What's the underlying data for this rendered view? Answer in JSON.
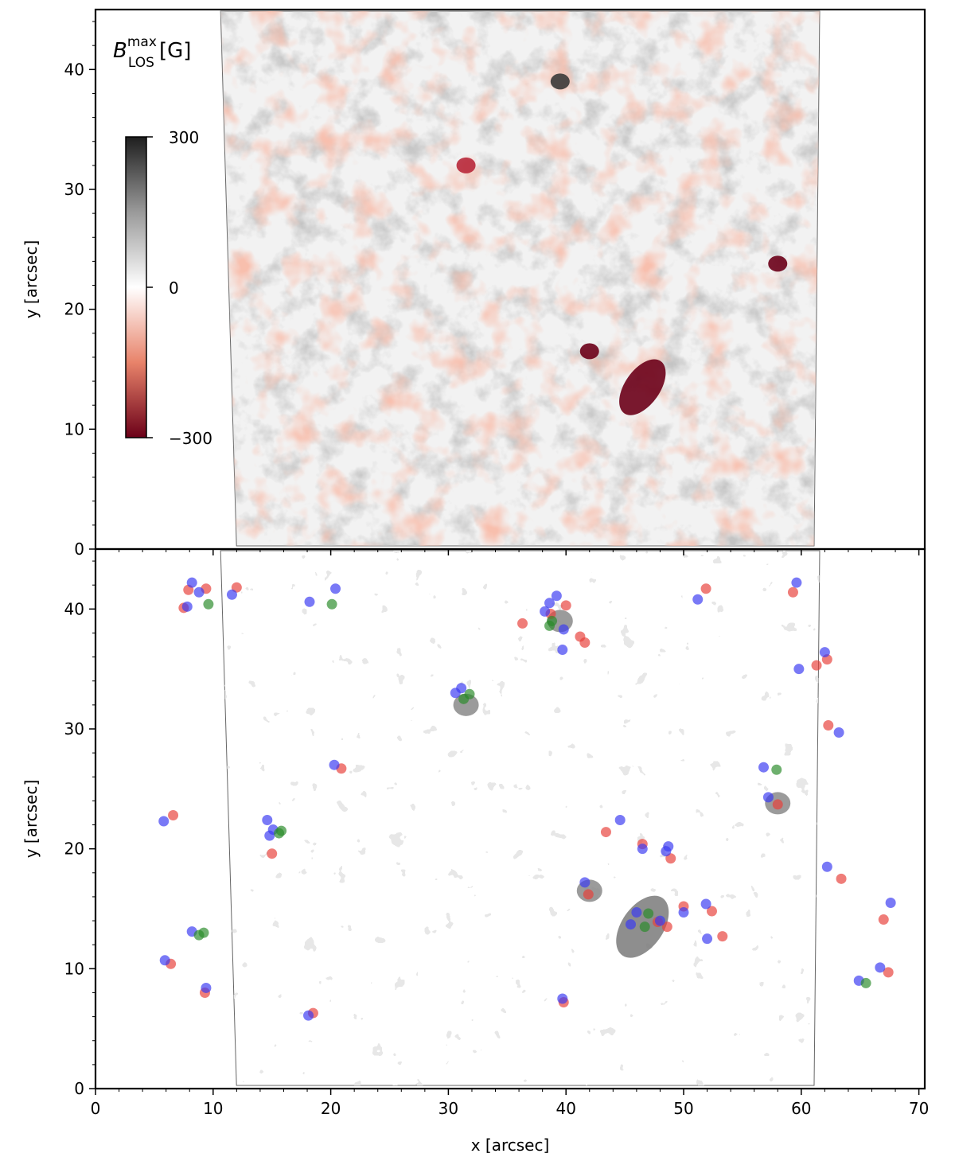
{
  "figure": {
    "colorbar": {
      "label_main": "B",
      "label_sup": "max",
      "label_sub": "LOS",
      "label_unit": "[G]",
      "ticks": [
        "300",
        "0",
        "−300"
      ],
      "colors": {
        "high": "#1e1e1e",
        "zero": "#ffffff",
        "low": "#6b0018",
        "mid_red": "#e8836a",
        "mid_gray": "#9a9a9a"
      }
    }
  },
  "chart_data": [
    {
      "type": "heatmap",
      "panel": "top",
      "title": "",
      "xlabel": "",
      "ylabel": "y [arcsec]",
      "xlim": [
        0,
        70.5
      ],
      "ylim": [
        0,
        45
      ],
      "x_ticks": [],
      "y_ticks": [
        "0",
        "10",
        "20",
        "30",
        "40"
      ],
      "colormap": "gray-white-red (RdGy)",
      "value_range": [
        -300,
        300
      ],
      "data_region_x": [
        10.5,
        61.5
      ],
      "features": [
        {
          "label": "strong negative patch",
          "x": 46.5,
          "y": 13.5,
          "value": -300
        },
        {
          "label": "negative patch",
          "x": 42,
          "y": 16.5,
          "value": -300
        },
        {
          "label": "negative patch",
          "x": 31.5,
          "y": 32,
          "value": -250
        },
        {
          "label": "negative patch",
          "x": 58,
          "y": 23.8,
          "value": -300
        },
        {
          "label": "positive patch",
          "x": 39.5,
          "y": 39,
          "value": 200
        }
      ]
    },
    {
      "type": "scatter",
      "panel": "bottom",
      "title": "",
      "xlabel": "x [arcsec]",
      "ylabel": "y [arcsec]",
      "xlim": [
        0,
        70.5
      ],
      "ylim": [
        0,
        45
      ],
      "x_ticks": [
        "0",
        "10",
        "20",
        "30",
        "40",
        "50",
        "60",
        "70"
      ],
      "y_ticks": [
        "0",
        "10",
        "20",
        "30",
        "40"
      ],
      "series": [
        {
          "color": "#e8403a",
          "points": [
            [
              7.5,
              40.1
            ],
            [
              7.9,
              41.6
            ],
            [
              9.4,
              41.7
            ],
            [
              12,
              41.8
            ],
            [
              18.5,
              6.3
            ],
            [
              20.9,
              26.7
            ],
            [
              15,
              19.6
            ],
            [
              6.6,
              22.8
            ],
            [
              6.4,
              10.4
            ],
            [
              9.3,
              8
            ],
            [
              36.3,
              38.8
            ],
            [
              38.7,
              39.6
            ],
            [
              40,
              40.3
            ],
            [
              41.2,
              37.7
            ],
            [
              41.6,
              37.2
            ],
            [
              39.8,
              7.2
            ],
            [
              41.9,
              16.2
            ],
            [
              43.4,
              21.4
            ],
            [
              46.5,
              20.4
            ],
            [
              48.9,
              19.2
            ],
            [
              48.6,
              13.5
            ],
            [
              47.8,
              13.9
            ],
            [
              50,
              15.2
            ],
            [
              52.4,
              14.8
            ],
            [
              53.3,
              12.7
            ],
            [
              51.9,
              41.7
            ],
            [
              59.3,
              41.4
            ],
            [
              61.3,
              35.3
            ],
            [
              62.2,
              35.8
            ],
            [
              62.3,
              30.3
            ],
            [
              58,
              23.7
            ],
            [
              63.4,
              17.5
            ],
            [
              67,
              14.1
            ],
            [
              67.4,
              9.7
            ]
          ]
        },
        {
          "color": "#3a3af2",
          "points": [
            [
              7.8,
              40.2
            ],
            [
              8.2,
              42.2
            ],
            [
              8.8,
              41.4
            ],
            [
              11.6,
              41.2
            ],
            [
              18.2,
              40.6
            ],
            [
              20.4,
              41.7
            ],
            [
              18.1,
              6.1
            ],
            [
              20.3,
              27
            ],
            [
              14.6,
              22.4
            ],
            [
              14.8,
              21.1
            ],
            [
              15.1,
              21.6
            ],
            [
              5.8,
              22.3
            ],
            [
              5.9,
              10.7
            ],
            [
              8.2,
              13.1
            ],
            [
              9.4,
              8.4
            ],
            [
              30.6,
              33
            ],
            [
              31.1,
              33.4
            ],
            [
              38.2,
              39.8
            ],
            [
              38.6,
              40.5
            ],
            [
              39.2,
              41.1
            ],
            [
              39.8,
              38.3
            ],
            [
              39.7,
              36.6
            ],
            [
              39.7,
              7.5
            ],
            [
              41.6,
              17.2
            ],
            [
              44.6,
              22.4
            ],
            [
              45.5,
              13.7
            ],
            [
              46,
              14.7
            ],
            [
              46.5,
              20
            ],
            [
              48,
              14
            ],
            [
              48.5,
              19.8
            ],
            [
              48.7,
              20.2
            ],
            [
              50,
              14.7
            ],
            [
              51.9,
              15.4
            ],
            [
              52,
              12.5
            ],
            [
              51.2,
              40.8
            ],
            [
              56.8,
              26.8
            ],
            [
              57.2,
              24.3
            ],
            [
              59.6,
              42.2
            ],
            [
              59.8,
              35
            ],
            [
              62,
              36.4
            ],
            [
              62.2,
              18.5
            ],
            [
              63.2,
              29.7
            ],
            [
              64.9,
              9
            ],
            [
              66.7,
              10.1
            ],
            [
              67.6,
              15.5
            ]
          ]
        },
        {
          "color": "#2a8a2a",
          "points": [
            [
              9.6,
              40.4
            ],
            [
              20.1,
              40.4
            ],
            [
              15.6,
              21.3
            ],
            [
              15.8,
              21.5
            ],
            [
              8.8,
              12.8
            ],
            [
              9.2,
              13
            ],
            [
              31.3,
              32.5
            ],
            [
              31.8,
              32.9
            ],
            [
              38.8,
              39
            ],
            [
              38.6,
              38.6
            ],
            [
              46.7,
              13.5
            ],
            [
              47,
              14.6
            ],
            [
              57.9,
              26.6
            ],
            [
              65.5,
              8.8
            ]
          ]
        }
      ]
    }
  ]
}
